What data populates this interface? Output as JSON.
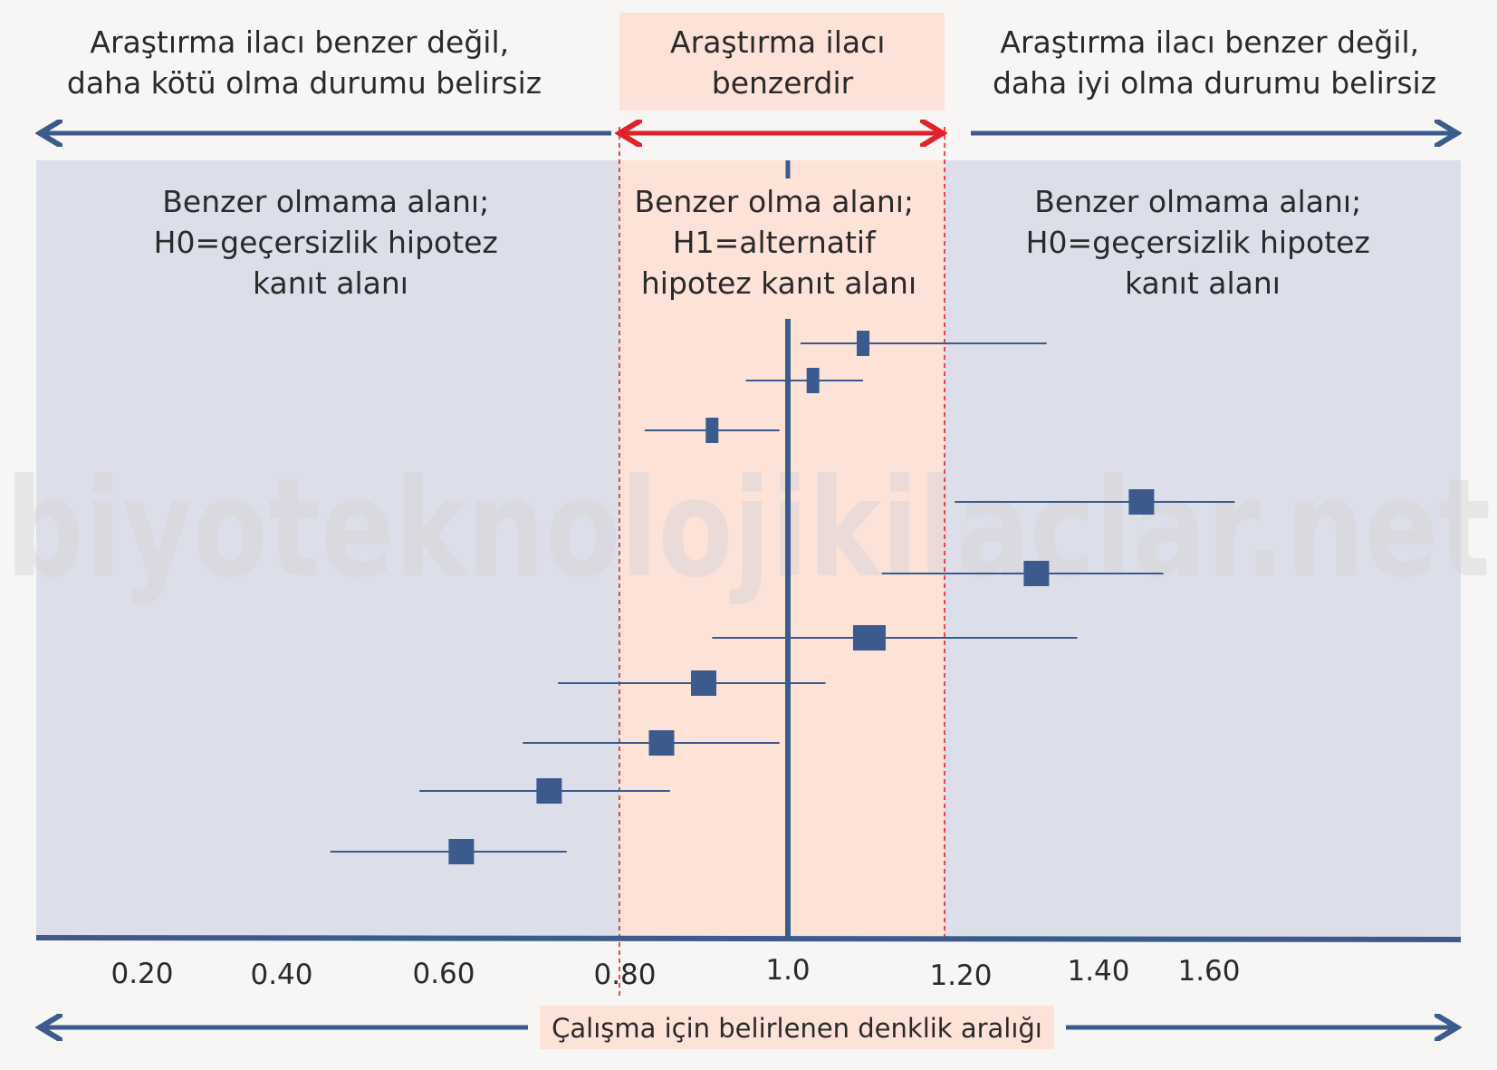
{
  "watermark": "biyoteknolojikilaclar.net",
  "headers": {
    "left": [
      "Araştırma ilacı benzer değil,",
      "daha kötü olma durumu belirsiz"
    ],
    "center": [
      "Araştırma ilacı",
      "benzerdir"
    ],
    "right": [
      "Araştırma ilacı benzer değil,",
      "daha iyi olma durumu belirsiz"
    ]
  },
  "zones": {
    "left": [
      "Benzer olmama alanı;",
      "H0=geçersizlik hipotez",
      "kanıt alanı"
    ],
    "center": [
      "Benzer olma alanı;",
      "H1=alternatif",
      "hipotez kanıt alanı"
    ],
    "right": [
      "Benzer olmama alanı;",
      "H0=geçersizlik hipotez",
      "kanıt alanı"
    ]
  },
  "footer_label": "Çalışma için belirlenen denklik aralığı",
  "colors": {
    "panel": "#dcdeea",
    "equivalence_zone": "#fde2d8",
    "marker": "#3b5b8c",
    "axis": "#3b5b8c",
    "bounds": "#e0232a",
    "page": "#f7f6f4"
  },
  "chart_data": {
    "type": "scatter",
    "subtype": "forest-plot",
    "title": "",
    "xlabel": "",
    "ylabel": "",
    "x_ticks": [
      "0.20",
      "0.40",
      "0.60",
      "0.80",
      "1.0",
      "1.20",
      "1.40",
      "1.60"
    ],
    "reference_line": 1.0,
    "equivalence_bounds": [
      0.8,
      1.25
    ],
    "points": [
      {
        "estimate": 1.12,
        "ci_low": 1.02,
        "ci_high": 1.35,
        "weight": 1
      },
      {
        "estimate": 1.04,
        "ci_low": 0.95,
        "ci_high": 1.12,
        "weight": 1
      },
      {
        "estimate": 0.91,
        "ci_low": 0.83,
        "ci_high": 0.99,
        "weight": 1
      },
      {
        "estimate": 1.48,
        "ci_low": 1.26,
        "ci_high": 1.65,
        "weight": 2
      },
      {
        "estimate": 1.34,
        "ci_low": 1.15,
        "ci_high": 1.52,
        "weight": 2
      },
      {
        "estimate": 1.13,
        "ci_low": 0.91,
        "ci_high": 1.38,
        "weight": 3
      },
      {
        "estimate": 0.9,
        "ci_low": 0.73,
        "ci_high": 1.06,
        "weight": 3
      },
      {
        "estimate": 0.85,
        "ci_low": 0.69,
        "ci_high": 0.99,
        "weight": 3
      },
      {
        "estimate": 0.72,
        "ci_low": 0.57,
        "ci_high": 0.86,
        "weight": 3
      },
      {
        "estimate": 0.62,
        "ci_low": 0.46,
        "ci_high": 0.74,
        "weight": 3
      }
    ]
  }
}
